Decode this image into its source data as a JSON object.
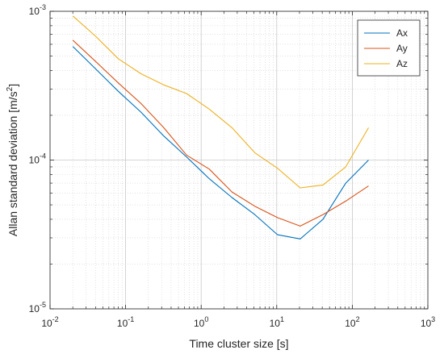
{
  "chart_data": {
    "type": "line",
    "xlabel": "Time cluster size [s]",
    "ylabel": "Allan standard deviation [m/s",
    "ylabel_exp": "2",
    "ylabel_close": "]",
    "xscale": "log",
    "yscale": "log",
    "xlim": [
      0.01,
      1000
    ],
    "ylim": [
      1e-05,
      0.001
    ],
    "grid": true,
    "minor_grid": true,
    "legend_position": "top-right",
    "x_ticks": [
      {
        "base": "10",
        "exp": "-2",
        "value": 0.01
      },
      {
        "base": "10",
        "exp": "-1",
        "value": 0.1
      },
      {
        "base": "10",
        "exp": "0",
        "value": 1
      },
      {
        "base": "10",
        "exp": "1",
        "value": 10
      },
      {
        "base": "10",
        "exp": "2",
        "value": 100
      },
      {
        "base": "10",
        "exp": "3",
        "value": 1000
      }
    ],
    "y_ticks": [
      {
        "base": "10",
        "exp": "-5",
        "value": 1e-05
      },
      {
        "base": "10",
        "exp": "-4",
        "value": 0.0001
      },
      {
        "base": "10",
        "exp": "-3",
        "value": 0.001
      }
    ],
    "series": [
      {
        "name": "Ax",
        "color": "#0072BD",
        "points": [
          [
            0.02,
            0.00058
          ],
          [
            0.04,
            0.00041
          ],
          [
            0.08,
            0.00029
          ],
          [
            0.16,
            0.00021
          ],
          [
            0.32,
            0.000145
          ],
          [
            0.64,
            0.000105
          ],
          [
            1.28,
            7.5e-05
          ],
          [
            2.56,
            5.6e-05
          ],
          [
            5.12,
            4.3e-05
          ],
          [
            10.24,
            3.15e-05
          ],
          [
            20.48,
            2.95e-05
          ],
          [
            40.96,
            4e-05
          ],
          [
            81.92,
            7e-05
          ],
          [
            163.84,
            0.0001
          ]
        ]
      },
      {
        "name": "Ay",
        "color": "#D95319",
        "points": [
          [
            0.02,
            0.00064
          ],
          [
            0.04,
            0.00046
          ],
          [
            0.08,
            0.00033
          ],
          [
            0.16,
            0.00024
          ],
          [
            0.32,
            0.000165
          ],
          [
            0.64,
            0.000108
          ],
          [
            1.28,
            8.7e-05
          ],
          [
            2.56,
            6.1e-05
          ],
          [
            5.12,
            4.9e-05
          ],
          [
            10.24,
            4.1e-05
          ],
          [
            20.48,
            3.6e-05
          ],
          [
            40.96,
            4.3e-05
          ],
          [
            81.92,
            5.3e-05
          ],
          [
            163.84,
            6.7e-05
          ]
        ]
      },
      {
        "name": "Az",
        "color": "#EDB120",
        "points": [
          [
            0.02,
            0.00093
          ],
          [
            0.04,
            0.00068
          ],
          [
            0.08,
            0.00048
          ],
          [
            0.16,
            0.00038
          ],
          [
            0.32,
            0.00032
          ],
          [
            0.64,
            0.00028
          ],
          [
            1.28,
            0.00022
          ],
          [
            2.56,
            0.000165
          ],
          [
            5.12,
            0.000112
          ],
          [
            10.24,
            8.8e-05
          ],
          [
            20.48,
            6.5e-05
          ],
          [
            40.96,
            6.8e-05
          ],
          [
            81.92,
            9e-05
          ],
          [
            163.84,
            0.000165
          ]
        ]
      }
    ]
  }
}
